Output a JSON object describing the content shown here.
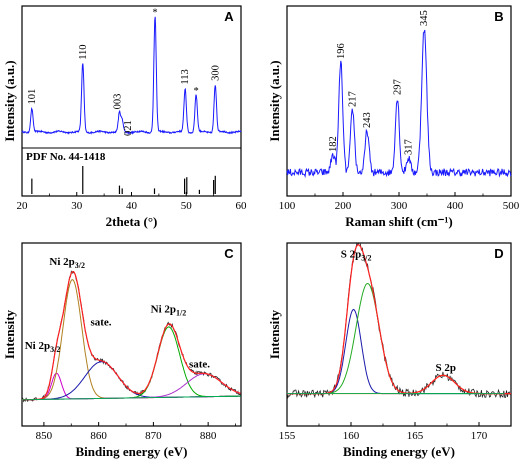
{
  "chart_data": [
    {
      "panel": "A",
      "type": "line",
      "xlabel": "2theta (°)",
      "ylabel": "Intensity (a.u.)",
      "xlim": [
        20,
        60
      ],
      "xticks": [
        20,
        30,
        40,
        50,
        60
      ],
      "reference_text": "PDF No. 44-1418",
      "peaks": [
        {
          "x": 21.8,
          "label": "101",
          "height": 0.19
        },
        {
          "x": 31.1,
          "label": "110",
          "height": 0.55
        },
        {
          "x": 37.8,
          "label": "003",
          "height": 0.15
        },
        {
          "x": 38.3,
          "label": "021",
          "height": 0.09
        },
        {
          "x": 44.3,
          "label": "*",
          "height": 0.93
        },
        {
          "x": 49.8,
          "label": "113",
          "height": 0.35
        },
        {
          "x": 51.8,
          "label": "*",
          "height": 0.3
        },
        {
          "x": 55.3,
          "label": "300",
          "height": 0.38
        }
      ],
      "reference_lines": [
        {
          "x": 21.8,
          "h": 0.55
        },
        {
          "x": 31.1,
          "h": 1.0
        },
        {
          "x": 37.8,
          "h": 0.3
        },
        {
          "x": 38.3,
          "h": 0.2
        },
        {
          "x": 44.2,
          "h": 0.2
        },
        {
          "x": 49.7,
          "h": 0.55
        },
        {
          "x": 50.1,
          "h": 0.6
        },
        {
          "x": 52.4,
          "h": 0.15
        },
        {
          "x": 55.0,
          "h": 0.5
        },
        {
          "x": 55.3,
          "h": 0.65
        }
      ]
    },
    {
      "panel": "B",
      "type": "line",
      "xlabel": "Raman shift (cm⁻¹)",
      "ylabel": "Intensity (a.u.)",
      "xlim": [
        100,
        500
      ],
      "xticks": [
        100,
        200,
        300,
        400,
        500
      ],
      "peaks": [
        {
          "x": 182,
          "label": "182",
          "height": 0.12
        },
        {
          "x": 196,
          "label": "196",
          "height": 0.74
        },
        {
          "x": 217,
          "label": "217",
          "height": 0.42
        },
        {
          "x": 243,
          "label": "243",
          "height": 0.28
        },
        {
          "x": 297,
          "label": "297",
          "height": 0.5
        },
        {
          "x": 317,
          "label": "317",
          "height": 0.1
        },
        {
          "x": 345,
          "label": "345",
          "height": 0.96
        }
      ]
    },
    {
      "panel": "C",
      "type": "line",
      "xlabel": "Binding energy (eV)",
      "ylabel": "Intensity",
      "xlim": [
        846,
        886
      ],
      "xticks": [
        850,
        860,
        870,
        880
      ],
      "annotations": [
        {
          "text": "Ni 2p",
          "sub": "3/2",
          "x": 846.5,
          "y": 0.42
        },
        {
          "text": "Ni 2p",
          "sub": "3/2",
          "x": 851.0,
          "y": 0.88
        },
        {
          "text": "sate.",
          "x": 858.5,
          "y": 0.55
        },
        {
          "text": "Ni 2p",
          "sub": "1/2",
          "x": 869.5,
          "y": 0.62
        },
        {
          "text": "sate.",
          "x": 876.5,
          "y": 0.32
        }
      ],
      "components": [
        {
          "name": "Ni 2p3/2 satellite peak",
          "center": 852.3,
          "width": 0.9,
          "height": 0.17,
          "color": "#cc00cc"
        },
        {
          "name": "Ni 2p3/2 main",
          "center": 855.2,
          "width": 1.7,
          "height": 0.78,
          "color": "#b08020"
        },
        {
          "name": "Ni 2p3/2 sate.",
          "center": 860.5,
          "width": 3.0,
          "height": 0.24,
          "color": "#1a1aaa"
        },
        {
          "name": "Ni 2p1/2",
          "center": 872.8,
          "width": 2.0,
          "height": 0.46,
          "color": "#00aa00"
        },
        {
          "name": "Ni 2p1/2 sate.",
          "center": 879.3,
          "width": 3.2,
          "height": 0.15,
          "color": "#aa33cc"
        }
      ],
      "baseline": 0.08
    },
    {
      "panel": "D",
      "type": "line",
      "xlabel": "Binding energy (eV)",
      "ylabel": "Intensity",
      "xlim": [
        155,
        172.5
      ],
      "xticks": [
        155,
        160,
        165,
        170
      ],
      "annotations": [
        {
          "text": "S 2p",
          "sub": "3/2",
          "x": 159.2,
          "y": 0.92
        },
        {
          "text": "S 2p",
          "x": 166.6,
          "y": 0.3
        }
      ],
      "components": [
        {
          "name": "S 2p3/2 a",
          "center": 160.2,
          "width": 0.6,
          "height": 0.55,
          "color": "#1a1aaa"
        },
        {
          "name": "S 2p3/2 b",
          "center": 161.3,
          "width": 0.9,
          "height": 0.72,
          "color": "#22aa22"
        },
        {
          "name": "S 2p",
          "center": 167.2,
          "width": 0.9,
          "height": 0.12,
          "color": "#ff8800"
        }
      ],
      "baseline": 0.12
    }
  ]
}
